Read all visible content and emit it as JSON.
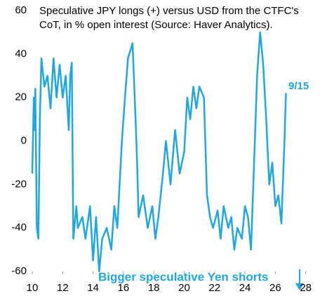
{
  "chart_data": {
    "type": "line",
    "title": [
      "Speculative JPY longs (+) versus USD from the CTFC's",
      "CoT, in % open interest (Source: Haver Analytics)."
    ],
    "annotations": [
      "9/15",
      "Bigger speculative Yen shorts"
    ],
    "color": "#1fa8e0",
    "x": [
      2010.0,
      2010.1,
      2010.15,
      2010.2,
      2010.3,
      2010.4,
      2010.5,
      2010.6,
      2010.8,
      2011.0,
      2011.2,
      2011.4,
      2011.6,
      2011.8,
      2012.0,
      2012.2,
      2012.4,
      2012.5,
      2012.6,
      2012.7,
      2012.9,
      2013.0,
      2013.3,
      2013.5,
      2013.8,
      2014.0,
      2014.2,
      2014.4,
      2014.6,
      2014.9,
      2015.2,
      2015.4,
      2015.6,
      2015.9,
      2016.1,
      2016.3,
      2016.6,
      2016.8,
      2016.9,
      2017.0,
      2017.3,
      2017.6,
      2017.9,
      2018.1,
      2018.3,
      2018.6,
      2018.8,
      2019.1,
      2019.4,
      2019.7,
      2020.0,
      2020.2,
      2020.4,
      2020.6,
      2020.8,
      2021.0,
      2021.3,
      2021.5,
      2021.7,
      2021.9,
      2022.2,
      2022.4,
      2022.6,
      2022.9,
      2023.1,
      2023.3,
      2023.5,
      2023.8,
      2024.0,
      2024.2,
      2024.4,
      2024.6,
      2024.8,
      2025.0,
      2025.2,
      2025.4,
      2025.6,
      2025.8,
      2026.0,
      2026.2,
      2026.4,
      2026.6,
      2026.7
    ],
    "values": [
      -15,
      20,
      5,
      24,
      -40,
      -45,
      10,
      38,
      25,
      30,
      15,
      38,
      20,
      35,
      20,
      30,
      5,
      30,
      36,
      -45,
      -30,
      -40,
      -35,
      -45,
      -30,
      -55,
      -35,
      -60,
      -45,
      -40,
      -50,
      -30,
      -40,
      0,
      20,
      38,
      45,
      10,
      -10,
      -35,
      -25,
      -40,
      -30,
      -45,
      -35,
      -15,
      0,
      -20,
      5,
      -15,
      -5,
      20,
      10,
      25,
      15,
      25,
      20,
      -25,
      -35,
      -40,
      -32,
      -45,
      -30,
      -40,
      -35,
      -50,
      -40,
      -45,
      -30,
      -35,
      -50,
      -10,
      30,
      50,
      35,
      10,
      -20,
      -10,
      -30,
      -25,
      -38,
      0,
      22
    ],
    "xlim": [
      2010,
      2028.2
    ],
    "xticks": [
      {
        "value": 2010,
        "label": "10"
      },
      {
        "value": 2012,
        "label": "12"
      },
      {
        "value": 2014,
        "label": "14"
      },
      {
        "value": 2016,
        "label": "16"
      },
      {
        "value": 2018,
        "label": "18"
      },
      {
        "value": 2020,
        "label": "20"
      },
      {
        "value": 2022,
        "label": "22"
      },
      {
        "value": 2024,
        "label": "24"
      },
      {
        "value": 2026,
        "label": "26"
      },
      {
        "value": 2028,
        "label": "28"
      }
    ],
    "ylim": [
      -60,
      60
    ],
    "yticks": [
      -60,
      -40,
      -20,
      0,
      20,
      40,
      60
    ],
    "grid": false
  }
}
